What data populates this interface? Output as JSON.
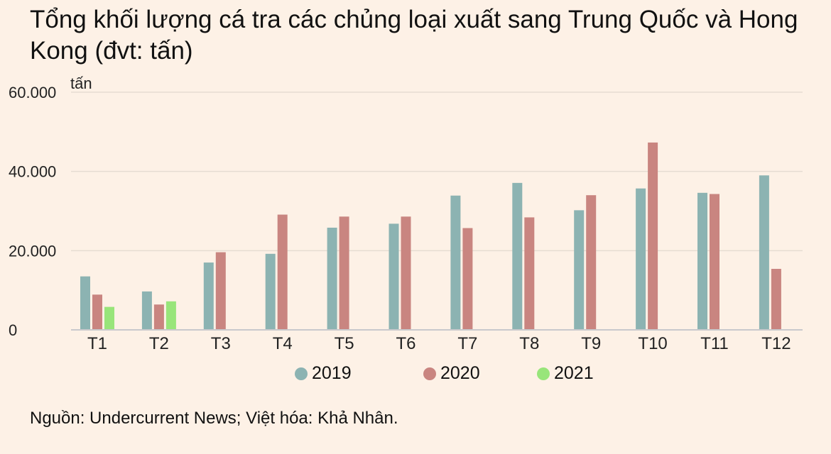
{
  "chart_data": {
    "type": "bar",
    "title": "Tổng khối lượng cá tra các chủng loại xuất sang Trung Quốc và Hong Kong (đvt: tấn)",
    "ylabel": "tấn",
    "ylim": [
      0,
      60000
    ],
    "yticks": [
      "0",
      "20.000",
      "40.000",
      "60.000"
    ],
    "yticks_values": [
      0,
      20000,
      40000,
      60000
    ],
    "grid": true,
    "legend_position": "bottom",
    "categories": [
      "T1",
      "T2",
      "T3",
      "T4",
      "T5",
      "T6",
      "T7",
      "T8",
      "T9",
      "T10",
      "T11",
      "T12"
    ],
    "series": [
      {
        "name": "2019",
        "color": "#8cb3b2",
        "values": [
          13500,
          9700,
          17000,
          19200,
          25800,
          26800,
          33900,
          37100,
          30200,
          35700,
          34600,
          39000
        ]
      },
      {
        "name": "2020",
        "color": "#c98580",
        "values": [
          8900,
          6400,
          19600,
          29100,
          28600,
          28600,
          25700,
          28400,
          34000,
          47300,
          34300,
          15400
        ]
      },
      {
        "name": "2021",
        "color": "#98e57a",
        "values": [
          5800,
          7200,
          null,
          null,
          null,
          null,
          null,
          null,
          null,
          null,
          null,
          null
        ]
      }
    ]
  },
  "source_text": "Nguồn: Undercurrent News; Việt hóa: Khả Nhân."
}
